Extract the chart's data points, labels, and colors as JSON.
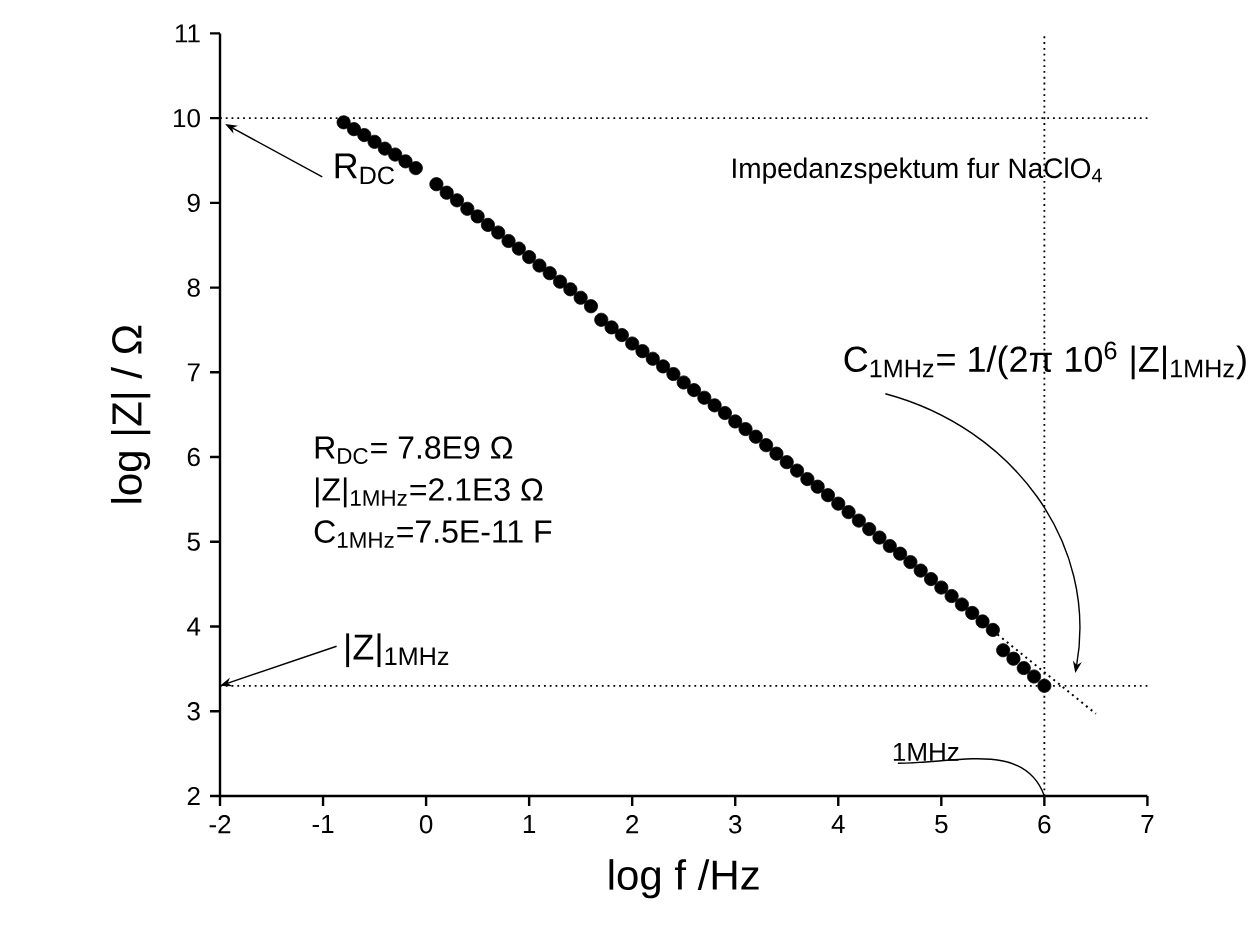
{
  "chart_data": {
    "type": "scatter",
    "title": "Impedanzspektum fur NaClO$_{4}$",
    "xlabel": "log f /Hz",
    "ylabel": "log |Z| / Ω",
    "xlim": [
      -2,
      7
    ],
    "ylim": [
      2,
      11
    ],
    "xticks": [
      -2,
      -1,
      0,
      1,
      2,
      3,
      4,
      5,
      6,
      7
    ],
    "yticks": [
      2,
      3,
      4,
      5,
      6,
      7,
      8,
      9,
      10,
      11
    ],
    "series": [
      {
        "color": "#000000",
        "marker": "circle",
        "x": [
          -0.8,
          -0.7,
          -0.6,
          -0.5,
          -0.4,
          -0.3,
          -0.2,
          -0.1,
          0.1,
          0.2,
          0.3,
          0.4,
          0.5,
          0.6,
          0.7,
          0.8,
          0.9,
          1.0,
          1.1,
          1.2,
          1.3,
          1.4,
          1.5,
          1.6,
          1.7,
          1.8,
          1.9,
          2.0,
          2.1,
          2.2,
          2.3,
          2.4,
          2.5,
          2.6,
          2.7,
          2.8,
          2.9,
          3.0,
          3.1,
          3.2,
          3.3,
          3.4,
          3.5,
          3.6,
          3.7,
          3.8,
          3.9,
          4.0,
          4.1,
          4.2,
          4.3,
          4.4,
          4.5,
          4.6,
          4.7,
          4.8,
          4.9,
          5.0,
          5.1,
          5.2,
          5.3,
          5.4,
          5.5,
          5.6,
          5.7,
          5.8,
          5.9,
          6.0
        ],
        "values": [
          9.95,
          9.87,
          9.8,
          9.72,
          9.64,
          9.57,
          9.49,
          9.41,
          9.22,
          9.12,
          9.03,
          8.93,
          8.84,
          8.74,
          8.65,
          8.55,
          8.46,
          8.36,
          8.26,
          8.17,
          8.07,
          7.98,
          7.88,
          7.78,
          7.62,
          7.53,
          7.44,
          7.34,
          7.25,
          7.16,
          7.07,
          6.98,
          6.88,
          6.79,
          6.7,
          6.61,
          6.52,
          6.42,
          6.33,
          6.24,
          6.14,
          6.04,
          5.94,
          5.84,
          5.74,
          5.65,
          5.55,
          5.45,
          5.35,
          5.25,
          5.15,
          5.05,
          4.95,
          4.86,
          4.76,
          4.66,
          4.56,
          4.46,
          4.36,
          4.26,
          4.16,
          4.06,
          3.96,
          3.72,
          3.62,
          3.51,
          3.41,
          3.3
        ]
      },
      {
        "type": "line",
        "color": "#000000",
        "marker": "none",
        "line_style": "dotted",
        "x": [
          5.5,
          6.5
        ],
        "values": [
          3.95,
          2.97
        ]
      }
    ],
    "ref_lines": [
      {
        "axis": "y",
        "value": 10,
        "line_style": "dotted",
        "color": "#000000"
      },
      {
        "axis": "y",
        "value": 3.3,
        "line_style": "dotted",
        "color": "#000000"
      },
      {
        "axis": "x",
        "value": 6,
        "line_style": "dotted",
        "color": "#000000"
      }
    ],
    "annotations": [
      "R$_{DC}$",
      {
        "text": "|Z|$_{1MHz}$",
        "x": -2,
        "y": 3.3
      },
      {
        "text": "1MHz",
        "x": 6,
        "y": 2
      },
      "C$_{1MHz}$= 1/(2π 10$^{6}$ |Z|$_{1MHz}$)",
      "R$_{DC}$= 7.8E9 Ω",
      "|Z|$_{1MHz}$=2.1E3 Ω",
      "C$_{1MHz}$=7.5E-11 F"
    ]
  }
}
